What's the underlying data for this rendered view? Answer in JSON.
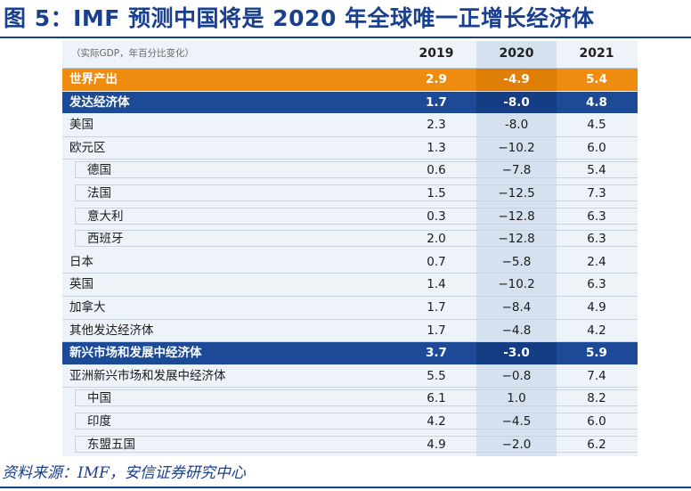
{
  "title": "图 5：IMF 预测中国将是 2020 年全球唯一正增长经济体",
  "table": {
    "unit_note": "（实际GDP，年百分比变化）",
    "years": [
      "2019",
      "2020",
      "2021"
    ],
    "rows": [
      {
        "label": "世界产出",
        "v2019": "2.9",
        "v2020": "-4.9",
        "v2021": "5.4"
      },
      {
        "label": "发达经济体",
        "v2019": "1.7",
        "v2020": "-8.0",
        "v2021": "4.8"
      },
      {
        "label": "美国",
        "v2019": "2.3",
        "v2020": "-8.0",
        "v2021": "4.5"
      },
      {
        "label": "欧元区",
        "v2019": "1.3",
        "v2020": "−10.2",
        "v2021": "6.0"
      },
      {
        "label": "德国",
        "v2019": "0.6",
        "v2020": "−7.8",
        "v2021": "5.4"
      },
      {
        "label": "法国",
        "v2019": "1.5",
        "v2020": "−12.5",
        "v2021": "7.3"
      },
      {
        "label": "意大利",
        "v2019": "0.3",
        "v2020": "−12.8",
        "v2021": "6.3"
      },
      {
        "label": "西班牙",
        "v2019": "2.0",
        "v2020": "−12.8",
        "v2021": "6.3"
      },
      {
        "label": "日本",
        "v2019": "0.7",
        "v2020": "−5.8",
        "v2021": "2.4"
      },
      {
        "label": "英国",
        "v2019": "1.4",
        "v2020": "−10.2",
        "v2021": "6.3"
      },
      {
        "label": "加拿大",
        "v2019": "1.7",
        "v2020": "−8.4",
        "v2021": "4.9"
      },
      {
        "label": "其他发达经济体",
        "v2019": "1.7",
        "v2020": "−4.8",
        "v2021": "4.2"
      },
      {
        "label": "新兴市场和发展中经济体",
        "v2019": "3.7",
        "v2020": "-3.0",
        "v2021": "5.9"
      },
      {
        "label": "亚洲新兴市场和发展中经济体",
        "v2019": "5.5",
        "v2020": "−0.8",
        "v2021": "7.4"
      },
      {
        "label": "中国",
        "v2019": "6.1",
        "v2020": "1.0",
        "v2021": "8.2"
      },
      {
        "label": "印度",
        "v2019": "4.2",
        "v2020": "−4.5",
        "v2021": "6.0"
      },
      {
        "label": "东盟五国",
        "v2019": "4.9",
        "v2020": "−2.0",
        "v2021": "6.2"
      }
    ]
  },
  "source": "资料来源：IMF，安信证券研究中心",
  "colors": {
    "title_blue": "#1a3f8f",
    "highlight_orange": "#ef8c10",
    "highlight_blue": "#1c4a96",
    "table_bg": "#eef3f9",
    "col2020_bg": "#d5e1ee"
  }
}
